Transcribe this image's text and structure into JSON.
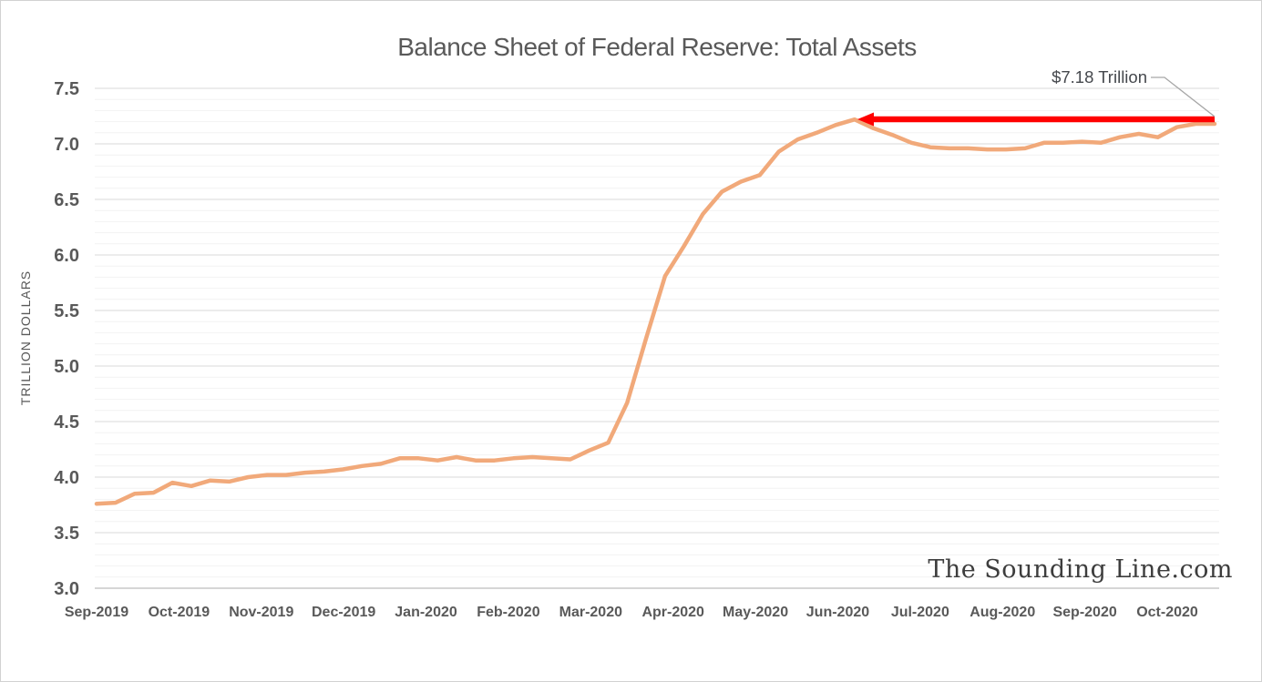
{
  "title": "Balance Sheet of Federal Reserve: Total Assets",
  "y_axis": {
    "label": "TRILLION DOLLARS",
    "ticks": [
      "7.5",
      "7.0",
      "6.5",
      "6.0",
      "5.5",
      "5.0",
      "4.5",
      "4.0",
      "3.5",
      "3.0"
    ]
  },
  "x_axis": {
    "labels": [
      "Sep-2019",
      "Oct-2019",
      "Nov-2019",
      "Dec-2019",
      "Jan-2020",
      "Feb-2020",
      "Mar-2020",
      "Apr-2020",
      "May-2020",
      "Jun-2020",
      "Jul-2020",
      "Aug-2020",
      "Sep-2020",
      "Oct-2020"
    ]
  },
  "annotation": {
    "label": "$7.18 Trillion",
    "value": 7.18
  },
  "watermark": "The Sounding Line.com",
  "colors": {
    "line": "#f1a97a",
    "arrow": "#ff0000",
    "grid_major": "#d9d9d9",
    "grid_minor": "#f2f2f2",
    "axis_line": "#bdbdbd",
    "text": "#595959",
    "annotation_text": "#45484d",
    "leader": "#a6a6a6",
    "watermark": "#3d3d3d"
  },
  "chart_data": {
    "type": "line",
    "title": "Balance Sheet of Federal Reserve: Total Assets",
    "series_name": "Federal Reserve Total Assets",
    "xlabel": "",
    "ylabel": "TRILLION DOLLARS",
    "ylim": [
      3.0,
      7.5
    ],
    "y_tick_step": 0.5,
    "y_minor_tick_step": 0.1,
    "grid": "horizontal major + minor, no vertical gridlines",
    "legend": "none",
    "x_tick_labels": [
      "Sep-2019",
      "Oct-2019",
      "Nov-2019",
      "Dec-2019",
      "Jan-2020",
      "Feb-2020",
      "Mar-2020",
      "Apr-2020",
      "May-2020",
      "Jun-2020",
      "Jul-2020",
      "Aug-2020",
      "Sep-2020",
      "Oct-2020"
    ],
    "x": [
      "2019-09-04",
      "2019-09-11",
      "2019-09-18",
      "2019-09-25",
      "2019-10-02",
      "2019-10-09",
      "2019-10-16",
      "2019-10-23",
      "2019-10-30",
      "2019-11-06",
      "2019-11-13",
      "2019-11-20",
      "2019-11-27",
      "2019-12-04",
      "2019-12-11",
      "2019-12-18",
      "2019-12-25",
      "2020-01-01",
      "2020-01-08",
      "2020-01-15",
      "2020-01-22",
      "2020-01-29",
      "2020-02-05",
      "2020-02-12",
      "2020-02-19",
      "2020-02-26",
      "2020-03-04",
      "2020-03-11",
      "2020-03-18",
      "2020-03-25",
      "2020-04-01",
      "2020-04-08",
      "2020-04-15",
      "2020-04-22",
      "2020-04-29",
      "2020-05-06",
      "2020-05-13",
      "2020-05-20",
      "2020-05-27",
      "2020-06-03",
      "2020-06-10",
      "2020-06-17",
      "2020-06-24",
      "2020-07-01",
      "2020-07-08",
      "2020-07-15",
      "2020-07-22",
      "2020-07-29",
      "2020-08-05",
      "2020-08-12",
      "2020-08-19",
      "2020-08-26",
      "2020-09-02",
      "2020-09-09",
      "2020-09-16",
      "2020-09-23",
      "2020-09-30",
      "2020-10-07",
      "2020-10-14",
      "2020-10-21"
    ],
    "values": [
      3.76,
      3.77,
      3.85,
      3.86,
      3.95,
      3.92,
      3.97,
      3.96,
      4.0,
      4.02,
      4.02,
      4.04,
      4.05,
      4.07,
      4.1,
      4.12,
      4.17,
      4.17,
      4.15,
      4.18,
      4.15,
      4.15,
      4.17,
      4.18,
      4.17,
      4.16,
      4.24,
      4.31,
      4.67,
      5.25,
      5.81,
      6.08,
      6.37,
      6.57,
      6.66,
      6.72,
      6.93,
      7.04,
      7.1,
      7.17,
      7.22,
      7.14,
      7.08,
      7.01,
      6.97,
      6.96,
      6.96,
      6.95,
      6.95,
      6.96,
      7.01,
      7.01,
      7.02,
      7.01,
      7.06,
      7.09,
      7.06,
      7.15,
      7.18,
      7.18
    ],
    "annotation": {
      "text": "$7.18 Trillion",
      "value": 7.18,
      "points_to": "2020-10-21",
      "arrow": "thick red horizontal arrow pointing left, spanning Jun-2020 to Oct-2020 at the final value level"
    }
  }
}
